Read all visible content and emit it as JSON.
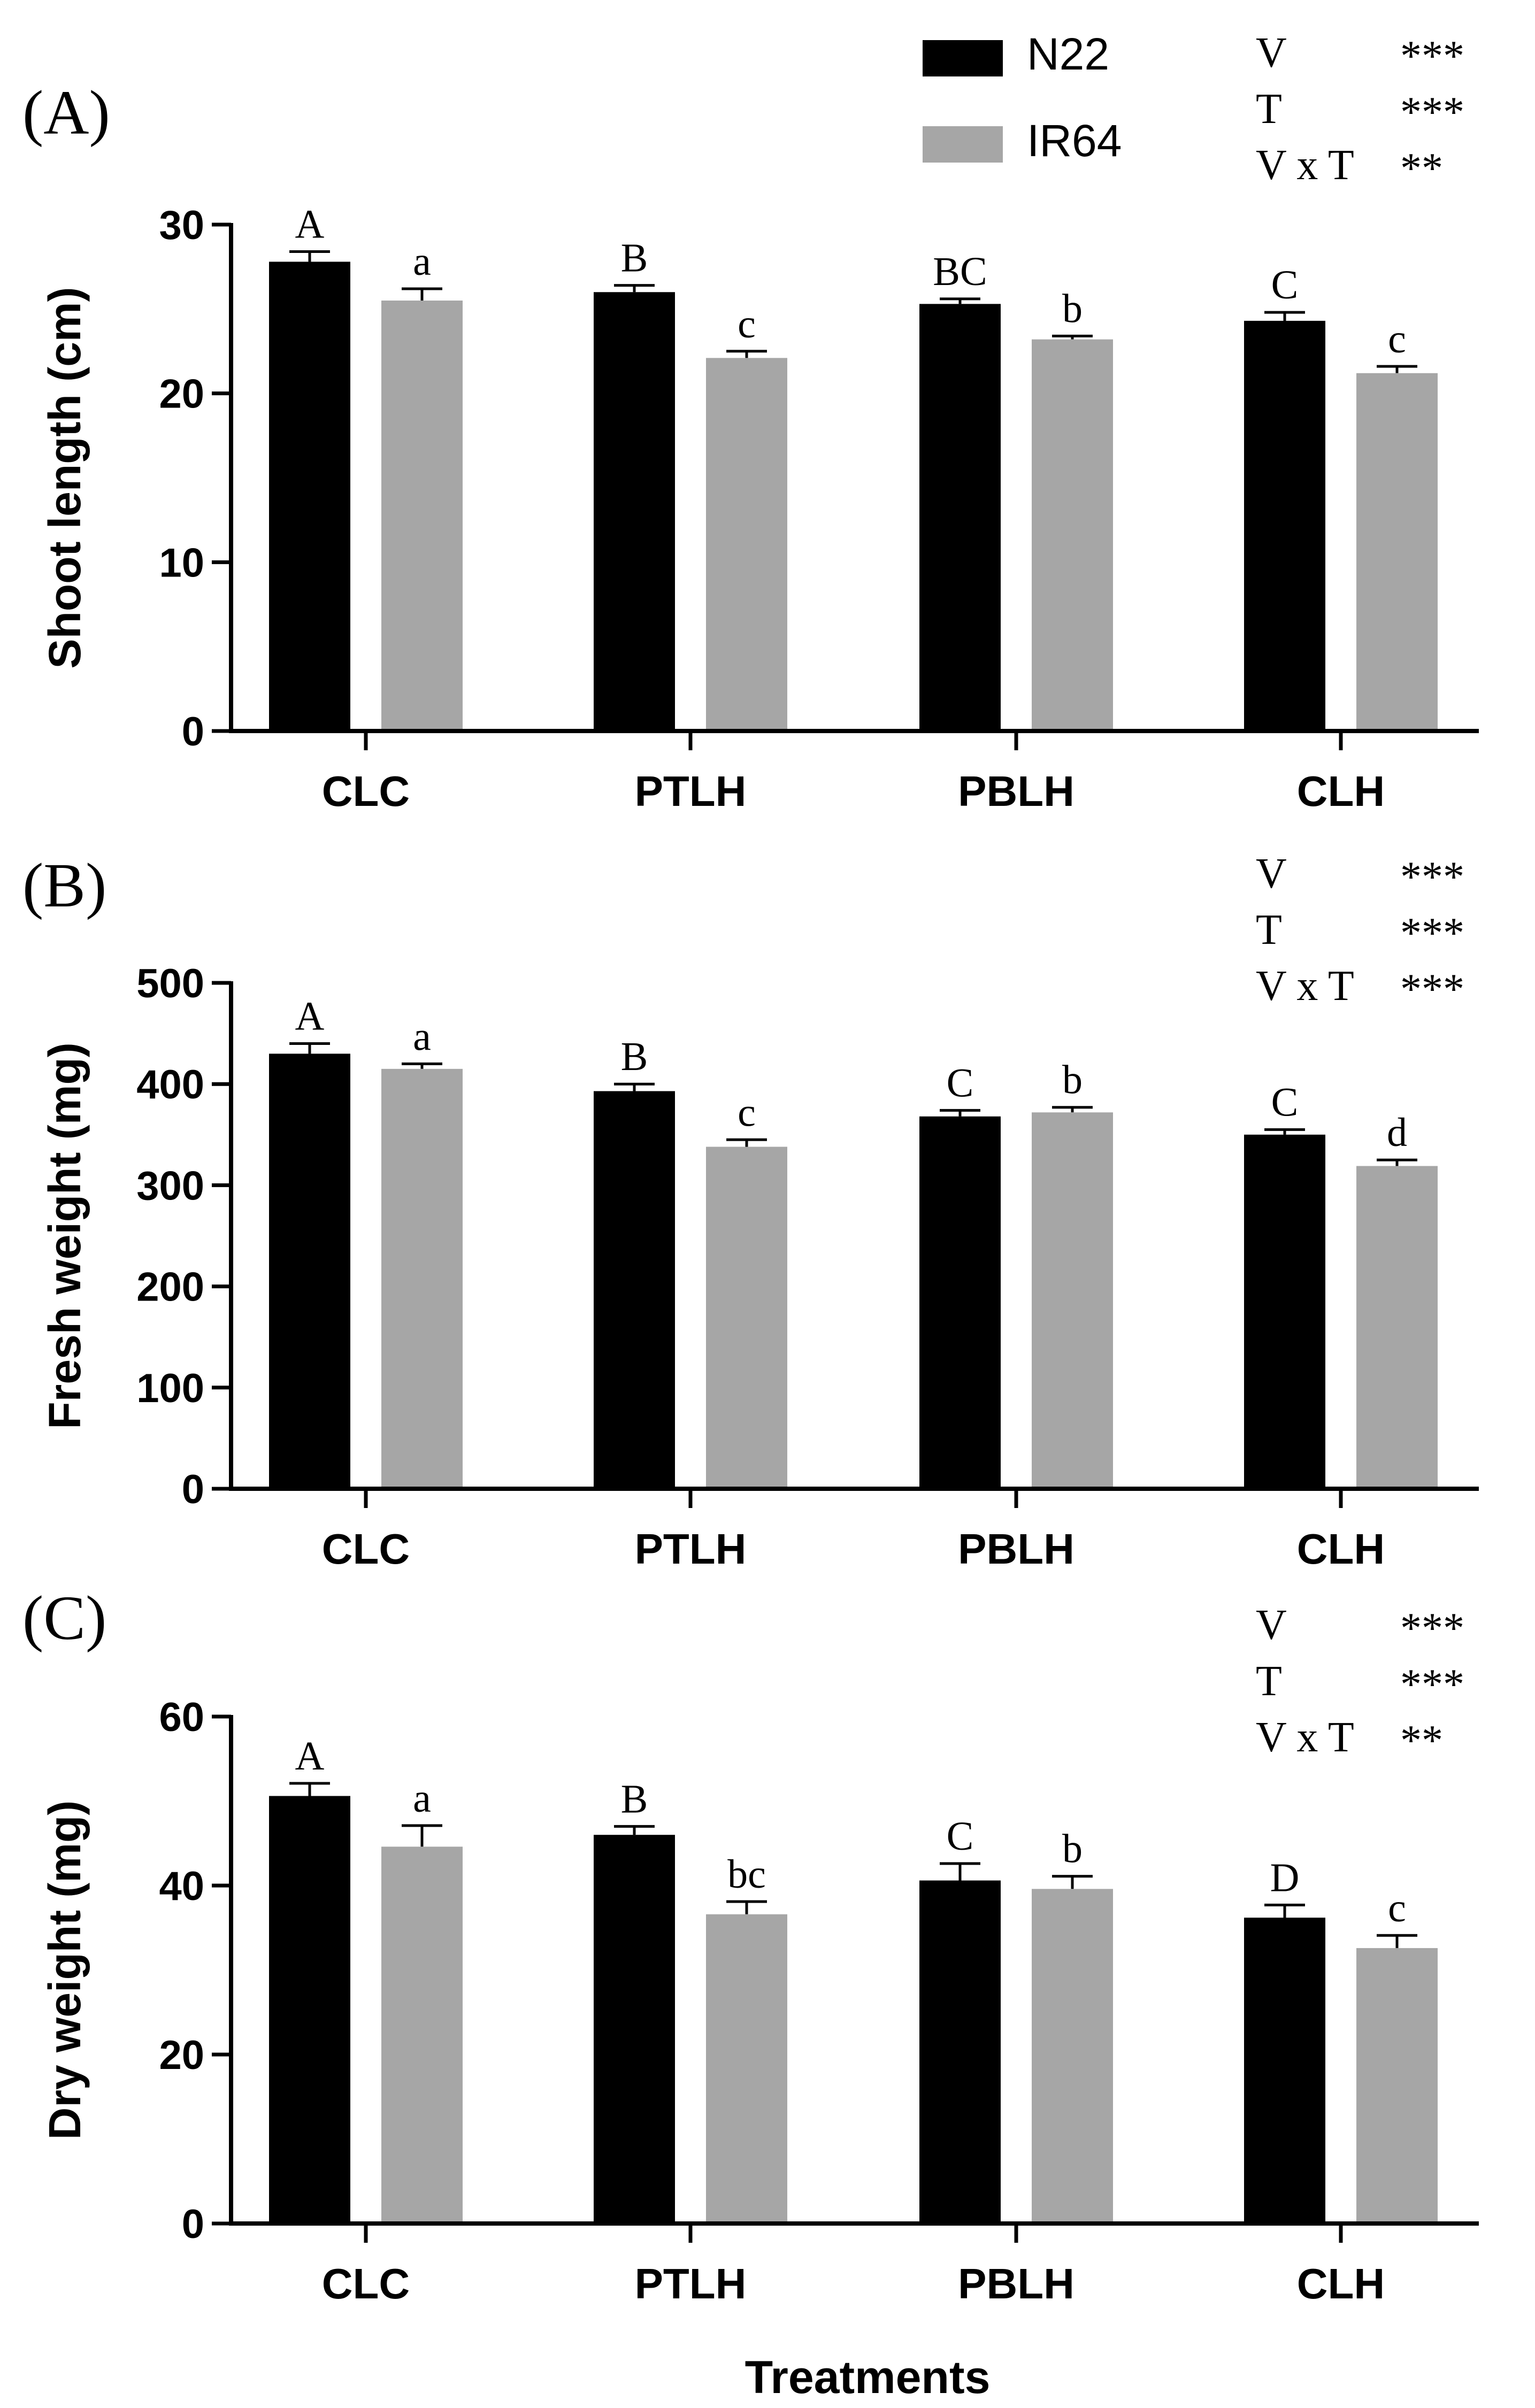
{
  "colors": {
    "N22": "#000000",
    "IR64": "#a6a6a6",
    "axis": "#000000"
  },
  "legend": {
    "position": "top-right",
    "items": [
      {
        "label": "N22",
        "color": "#000000"
      },
      {
        "label": "IR64",
        "color": "#a6a6a6"
      }
    ]
  },
  "x_title": "Treatments",
  "chart_data": [
    {
      "type": "bar",
      "panel_label": "(A)",
      "ylabel": "Shoot length (cm)",
      "xlabel": "",
      "ylim": [
        0,
        30
      ],
      "yticks": [
        0,
        10,
        20,
        30
      ],
      "grid": false,
      "categories": [
        "CLC",
        "PTLH",
        "PBLH",
        "CLH"
      ],
      "series": [
        {
          "name": "N22",
          "values": [
            27.8,
            26.0,
            25.3,
            24.3
          ],
          "errors": [
            0.6,
            0.4,
            0.3,
            0.5
          ],
          "letters": [
            "A",
            "B",
            "BC",
            "C"
          ]
        },
        {
          "name": "IR64",
          "values": [
            25.5,
            22.1,
            23.2,
            21.2
          ],
          "errors": [
            0.7,
            0.4,
            0.2,
            0.4
          ],
          "letters": [
            "a",
            "c",
            "b",
            "c"
          ]
        }
      ],
      "anova": [
        {
          "factor": "V",
          "sig": "***"
        },
        {
          "factor": "T",
          "sig": "***"
        },
        {
          "factor": "V x T",
          "sig": "**"
        }
      ]
    },
    {
      "type": "bar",
      "panel_label": "(B)",
      "ylabel": "Fresh weight (mg)",
      "xlabel": "",
      "ylim": [
        0,
        500
      ],
      "yticks": [
        0,
        100,
        200,
        300,
        400,
        500
      ],
      "grid": false,
      "categories": [
        "CLC",
        "PTLH",
        "PBLH",
        "CLH"
      ],
      "series": [
        {
          "name": "N22",
          "values": [
            430,
            393,
            368,
            350
          ],
          "errors": [
            10,
            7,
            6,
            5
          ],
          "letters": [
            "A",
            "B",
            "C",
            "C"
          ]
        },
        {
          "name": "IR64",
          "values": [
            415,
            338,
            372,
            319
          ],
          "errors": [
            5,
            7,
            5,
            6
          ],
          "letters": [
            "a",
            "c",
            "b",
            "d"
          ]
        }
      ],
      "anova": [
        {
          "factor": "V",
          "sig": "***"
        },
        {
          "factor": "T",
          "sig": "***"
        },
        {
          "factor": "V x T",
          "sig": "***"
        }
      ]
    },
    {
      "type": "bar",
      "panel_label": "(C)",
      "ylabel": "Dry weight (mg)",
      "xlabel": "Treatments",
      "ylim": [
        0,
        60
      ],
      "yticks": [
        0,
        20,
        40,
        60
      ],
      "grid": false,
      "categories": [
        "CLC",
        "PTLH",
        "PBLH",
        "CLH"
      ],
      "series": [
        {
          "name": "N22",
          "values": [
            50.6,
            46.0,
            40.6,
            36.2
          ],
          "errors": [
            1.5,
            1.0,
            2.0,
            1.5
          ],
          "letters": [
            "A",
            "B",
            "C",
            "D"
          ]
        },
        {
          "name": "IR64",
          "values": [
            44.6,
            36.6,
            39.6,
            32.6
          ],
          "errors": [
            2.5,
            1.5,
            1.5,
            1.5
          ],
          "letters": [
            "a",
            "bc",
            "b",
            "c"
          ]
        }
      ],
      "anova": [
        {
          "factor": "V",
          "sig": "***"
        },
        {
          "factor": "T",
          "sig": "***"
        },
        {
          "factor": "V x T",
          "sig": "**"
        }
      ]
    }
  ]
}
